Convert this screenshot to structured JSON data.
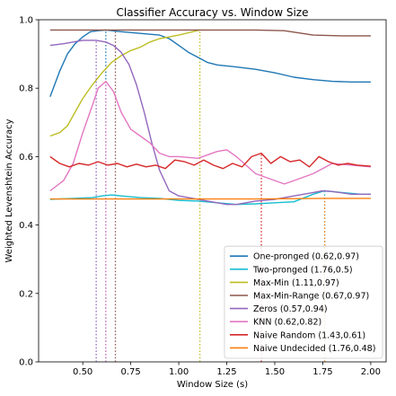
{
  "chart_data": {
    "type": "line",
    "title": "Classifier Accuracy vs. Window Size",
    "xlabel": "Window Size (s)",
    "ylabel": "Weighted Levenshtein Accuracy",
    "xlim": [
      0.27,
      2.08
    ],
    "ylim": [
      0.0,
      1.0
    ],
    "xticks": [
      0.5,
      0.75,
      1.0,
      1.25,
      1.5,
      1.75,
      2.0
    ],
    "xtick_labels": [
      "0.50",
      "0.75",
      "1.00",
      "1.25",
      "1.50",
      "1.75",
      "2.00"
    ],
    "yticks": [
      0.0,
      0.2,
      0.4,
      0.6,
      0.8,
      1.0
    ],
    "ytick_labels": [
      "0.0",
      "0.2",
      "0.4",
      "0.6",
      "0.8",
      "1.0"
    ],
    "grid": false,
    "legend_position": "bottom-right",
    "series": [
      {
        "name": "One-pronged (0.62,0.97)",
        "color": "#1f77b4",
        "x": [
          0.33,
          0.38,
          0.42,
          0.46,
          0.5,
          0.54,
          0.58,
          0.62,
          0.7,
          0.8,
          0.9,
          0.95,
          1.0,
          1.05,
          1.1,
          1.15,
          1.2,
          1.25,
          1.3,
          1.4,
          1.5,
          1.6,
          1.7,
          1.8,
          1.9,
          2.0
        ],
        "y": [
          0.775,
          0.85,
          0.9,
          0.93,
          0.95,
          0.965,
          0.968,
          0.97,
          0.965,
          0.96,
          0.955,
          0.945,
          0.925,
          0.905,
          0.89,
          0.875,
          0.868,
          0.865,
          0.862,
          0.855,
          0.845,
          0.832,
          0.825,
          0.82,
          0.818,
          0.818
        ],
        "marker": {
          "x": 0.62,
          "y": 0.97
        }
      },
      {
        "name": "Two-pronged (1.76,0.5)",
        "color": "#17becf",
        "x": [
          0.33,
          0.45,
          0.55,
          0.6,
          0.65,
          0.7,
          0.8,
          0.9,
          1.0,
          1.1,
          1.2,
          1.3,
          1.4,
          1.5,
          1.6,
          1.7,
          1.76,
          1.85,
          1.95,
          2.0
        ],
        "y": [
          0.475,
          0.478,
          0.48,
          0.485,
          0.488,
          0.485,
          0.48,
          0.478,
          0.472,
          0.47,
          0.465,
          0.46,
          0.462,
          0.465,
          0.468,
          0.49,
          0.5,
          0.495,
          0.49,
          0.49
        ],
        "marker": {
          "x": 1.76,
          "y": 0.5
        }
      },
      {
        "name": "Max-Min (1.11,0.97)",
        "color": "#bcbd22",
        "x": [
          0.33,
          0.38,
          0.42,
          0.46,
          0.5,
          0.55,
          0.6,
          0.65,
          0.7,
          0.75,
          0.8,
          0.85,
          0.9,
          0.95,
          1.0,
          1.05,
          1.11
        ],
        "y": [
          0.66,
          0.67,
          0.69,
          0.73,
          0.77,
          0.81,
          0.845,
          0.875,
          0.895,
          0.91,
          0.92,
          0.935,
          0.945,
          0.95,
          0.955,
          0.962,
          0.97
        ],
        "marker": {
          "x": 1.11,
          "y": 0.97
        }
      },
      {
        "name": "Max-Min-Range (0.67,0.97)",
        "color": "#8c564b",
        "x": [
          0.33,
          0.5,
          0.67,
          0.8,
          1.0,
          1.2,
          1.4,
          1.55,
          1.7,
          1.85,
          2.0
        ],
        "y": [
          0.97,
          0.97,
          0.97,
          0.97,
          0.97,
          0.97,
          0.97,
          0.968,
          0.955,
          0.953,
          0.953
        ],
        "marker": {
          "x": 0.67,
          "y": 0.97
        }
      },
      {
        "name": "Zeros (0.57,0.94)",
        "color": "#9467bd",
        "x": [
          0.33,
          0.4,
          0.45,
          0.5,
          0.57,
          0.62,
          0.66,
          0.7,
          0.74,
          0.78,
          0.82,
          0.86,
          0.9,
          0.95,
          1.0,
          1.05,
          1.1,
          1.15,
          1.2,
          1.25,
          1.3,
          1.4,
          1.5,
          1.55,
          1.6,
          1.7,
          1.75,
          1.8,
          1.9,
          2.0
        ],
        "y": [
          0.925,
          0.93,
          0.935,
          0.94,
          0.94,
          0.935,
          0.925,
          0.905,
          0.87,
          0.81,
          0.73,
          0.64,
          0.56,
          0.5,
          0.485,
          0.48,
          0.475,
          0.47,
          0.465,
          0.46,
          0.46,
          0.47,
          0.475,
          0.48,
          0.485,
          0.495,
          0.5,
          0.498,
          0.49,
          0.49
        ],
        "marker": {
          "x": 0.57,
          "y": 0.94
        }
      },
      {
        "name": "KNN (0.62,0.82)",
        "color": "#e377c2",
        "x": [
          0.33,
          0.4,
          0.45,
          0.5,
          0.55,
          0.58,
          0.62,
          0.66,
          0.7,
          0.75,
          0.8,
          0.85,
          0.9,
          0.95,
          1.0,
          1.1,
          1.2,
          1.25,
          1.3,
          1.4,
          1.5,
          1.55,
          1.6,
          1.7,
          1.8,
          1.9,
          2.0
        ],
        "y": [
          0.5,
          0.53,
          0.58,
          0.67,
          0.75,
          0.8,
          0.82,
          0.79,
          0.73,
          0.68,
          0.66,
          0.64,
          0.61,
          0.6,
          0.6,
          0.595,
          0.615,
          0.62,
          0.6,
          0.55,
          0.53,
          0.52,
          0.53,
          0.55,
          0.58,
          0.575,
          0.57
        ],
        "marker": {
          "x": 0.62,
          "y": 0.82
        }
      },
      {
        "name": "Naive Random (1.43,0.61)",
        "color": "#d62728",
        "x": [
          0.33,
          0.38,
          0.43,
          0.48,
          0.53,
          0.58,
          0.63,
          0.68,
          0.73,
          0.78,
          0.83,
          0.88,
          0.93,
          0.98,
          1.03,
          1.08,
          1.13,
          1.18,
          1.23,
          1.28,
          1.33,
          1.38,
          1.43,
          1.48,
          1.53,
          1.58,
          1.63,
          1.68,
          1.73,
          1.78,
          1.83,
          1.88,
          1.93,
          2.0
        ],
        "y": [
          0.6,
          0.58,
          0.57,
          0.58,
          0.575,
          0.585,
          0.575,
          0.58,
          0.57,
          0.578,
          0.57,
          0.575,
          0.565,
          0.59,
          0.585,
          0.575,
          0.59,
          0.575,
          0.565,
          0.58,
          0.57,
          0.6,
          0.61,
          0.58,
          0.6,
          0.585,
          0.59,
          0.57,
          0.6,
          0.585,
          0.575,
          0.58,
          0.575,
          0.572
        ],
        "marker": {
          "x": 1.43,
          "y": 0.61
        }
      },
      {
        "name": "Naive Undecided (1.76,0.48)",
        "color": "#ff7f0e",
        "x": [
          0.33,
          0.6,
          1.0,
          1.4,
          1.76,
          2.0
        ],
        "y": [
          0.476,
          0.476,
          0.476,
          0.476,
          0.478,
          0.478
        ],
        "marker": {
          "x": 1.76,
          "y": 0.48
        }
      }
    ]
  }
}
